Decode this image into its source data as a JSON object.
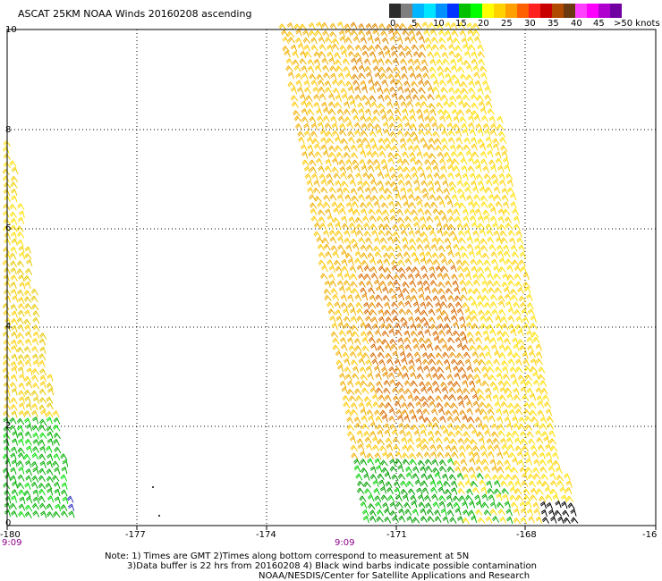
{
  "header": {
    "title": "ASCAT 25KM NOAA Winds 20160208 ascending"
  },
  "color_scale": {
    "colors": [
      "#2b2b2b",
      "#7f7f7f",
      "#00b5ff",
      "#00e5ff",
      "#0090ff",
      "#0033ff",
      "#00c000",
      "#00ff00",
      "#ffff00",
      "#ffd200",
      "#ffa000",
      "#ff6000",
      "#ff2020",
      "#c80000",
      "#b04a00",
      "#6b3a10",
      "#ff40ff",
      "#ff00ff",
      "#b000d0",
      "#7000a0"
    ],
    "labels": [
      "0",
      "5",
      "10",
      "15",
      "20",
      "25",
      "30",
      "35",
      "40",
      "45",
      ">50 knots"
    ]
  },
  "map": {
    "lat_labels": [
      "10",
      "8",
      "6",
      "4",
      "2",
      "0"
    ],
    "lon_labels": [
      "-180",
      "-177",
      "-174",
      "-171",
      "-168",
      "-16"
    ],
    "time_labels": [
      "9:09",
      "9:09"
    ]
  },
  "notes": {
    "line1": "Note: 1) Times are GMT 2)Times along bottom correspond to measurement at 5N",
    "line2": "3)Data buffer is 22 hrs from 20160208 4) Black wind barbs indicate possible contamination",
    "line3": "NOAA/NESDIS/Center for Satellite Applications and Research"
  }
}
